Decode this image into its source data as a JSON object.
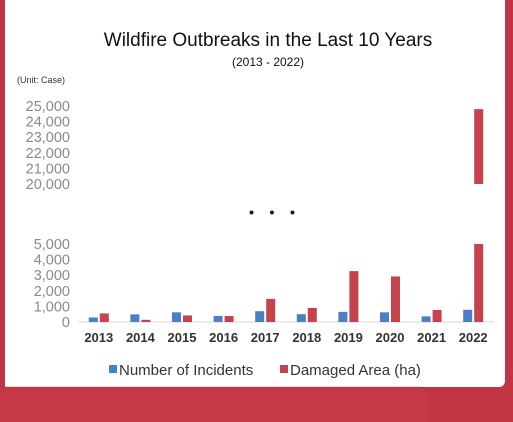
{
  "chart_data": {
    "type": "bar",
    "title": "Wildfire Outbreaks in the Last 10 Years",
    "subtitle": "(2013 - 2022)",
    "unit_note": "(Unit: Case)",
    "break_marker": "•    •    •",
    "categories": [
      "2013",
      "2014",
      "2015",
      "2016",
      "2017",
      "2018",
      "2019",
      "2020",
      "2021",
      "2022"
    ],
    "series": [
      {
        "name": "Number of Incidents",
        "color": "#4a7ec6",
        "values": [
          290,
          490,
          620,
          390,
          690,
          500,
          650,
          620,
          360,
          780
        ]
      },
      {
        "name": "Damaged Area (ha)",
        "color": "#c4434d",
        "values": [
          550,
          140,
          420,
          380,
          1480,
          900,
          3260,
          2920,
          770,
          24800
        ]
      }
    ],
    "axis_break": true,
    "lower_ylim": [
      0,
      5000
    ],
    "lower_yticks": [
      "0",
      "1,000",
      "2,000",
      "3,000",
      "4,000",
      "5,000"
    ],
    "upper_ylim": [
      20000,
      25000
    ],
    "upper_yticks": [
      "20,000",
      "21,000",
      "22,000",
      "23,000",
      "24,000",
      "25,000"
    ],
    "grid": false,
    "legend_position": "bottom"
  }
}
